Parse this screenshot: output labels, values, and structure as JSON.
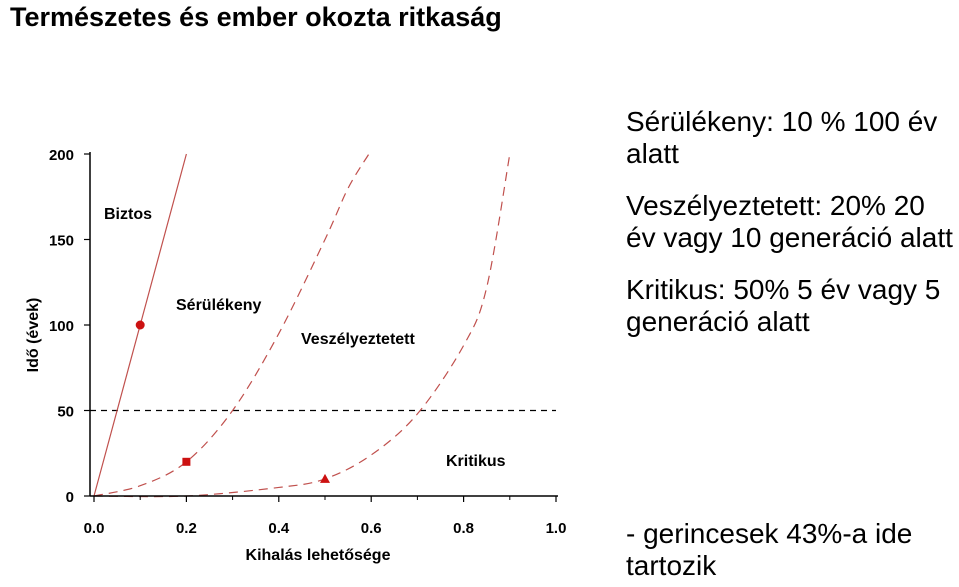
{
  "slide": {
    "title": "Természetes és ember okozta ritkaság"
  },
  "notes": [
    "Sérülékeny: 10 % 100 év alatt",
    "Veszélyeztetett: 20% 20 év vagy 10 generáció alatt",
    "Kritikus: 50% 5 év vagy 5 generáció alatt",
    "- gerincesek 43%-a ide tartozik"
  ],
  "chart_data": {
    "type": "line",
    "title": "",
    "xlabel": "Kihalás lehetősége",
    "ylabel": "Idő (évek)",
    "xlim": [
      0.0,
      1.0
    ],
    "ylim": [
      0,
      200
    ],
    "x_ticks": [
      "0.0",
      "0.2",
      "0.4",
      "0.6",
      "0.8",
      "1.0"
    ],
    "y_ticks": [
      "0",
      "50",
      "100",
      "150",
      "200"
    ],
    "grid": false,
    "region_labels": {
      "safe": "Biztos",
      "vulnerable": "Sérülékeny",
      "endangered": "Veszélyeztetett",
      "critical": "Kritikus"
    },
    "series": [
      {
        "key": "safe",
        "style": "solid",
        "x": [
          0.0,
          0.1,
          0.2
        ],
        "y": [
          0,
          100,
          200
        ]
      },
      {
        "key": "vulnerable",
        "style": "dashed",
        "x": [
          0.0,
          0.1,
          0.2,
          0.3,
          0.4,
          0.5,
          0.55,
          0.595
        ],
        "y": [
          0,
          6,
          20,
          50,
          95,
          150,
          180,
          200
        ]
      },
      {
        "key": "endangered",
        "style": "dashed",
        "x": [
          0.0,
          0.2,
          0.4,
          0.5,
          0.6,
          0.7,
          0.8,
          0.85,
          0.9
        ],
        "y": [
          0,
          0,
          5,
          10,
          24,
          48,
          88,
          122,
          200
        ]
      }
    ],
    "reference_line": {
      "y": 50,
      "style": "dashed"
    },
    "markers": [
      {
        "x": 0.1,
        "y": 100,
        "shape": "circle"
      },
      {
        "x": 0.2,
        "y": 20,
        "shape": "square"
      },
      {
        "x": 0.5,
        "y": 10,
        "shape": "triangle"
      }
    ],
    "colors": {
      "curve": "#c0504d",
      "marker": "#cc1111",
      "axis": "#000000",
      "reference": "#000000"
    }
  }
}
